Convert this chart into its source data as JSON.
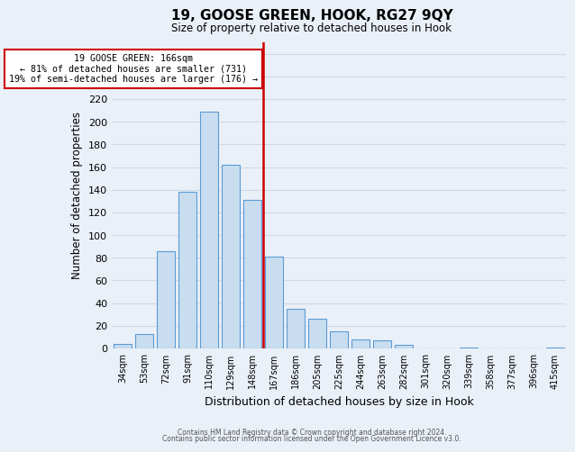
{
  "title": "19, GOOSE GREEN, HOOK, RG27 9QY",
  "subtitle": "Size of property relative to detached houses in Hook",
  "xlabel": "Distribution of detached houses by size in Hook",
  "ylabel": "Number of detached properties",
  "bar_labels": [
    "34sqm",
    "53sqm",
    "72sqm",
    "91sqm",
    "110sqm",
    "129sqm",
    "148sqm",
    "167sqm",
    "186sqm",
    "205sqm",
    "225sqm",
    "244sqm",
    "263sqm",
    "282sqm",
    "301sqm",
    "320sqm",
    "339sqm",
    "358sqm",
    "377sqm",
    "396sqm",
    "415sqm"
  ],
  "bar_values": [
    4,
    13,
    86,
    138,
    209,
    162,
    131,
    81,
    35,
    26,
    15,
    8,
    7,
    3,
    0,
    0,
    1,
    0,
    0,
    0,
    1
  ],
  "bar_color": "#c9ddf0",
  "bar_edge_color": "#5b9bd5",
  "vline_x": 6.5,
  "vline_color": "#cc0000",
  "annotation_title": "19 GOOSE GREEN: 166sqm",
  "annotation_line1": "← 81% of detached houses are smaller (731)",
  "annotation_line2": "19% of semi-detached houses are larger (176) →",
  "annotation_box_color": "#ffffff",
  "annotation_box_edge": "#cc0000",
  "ylim": [
    0,
    270
  ],
  "yticks": [
    0,
    20,
    40,
    60,
    80,
    100,
    120,
    140,
    160,
    180,
    200,
    220,
    240,
    260
  ],
  "grid_color": "#d0d8e8",
  "background_color": "#eaf0f8",
  "footer_line1": "Contains HM Land Registry data © Crown copyright and database right 2024.",
  "footer_line2": "Contains public sector information licensed under the Open Government Licence v3.0."
}
